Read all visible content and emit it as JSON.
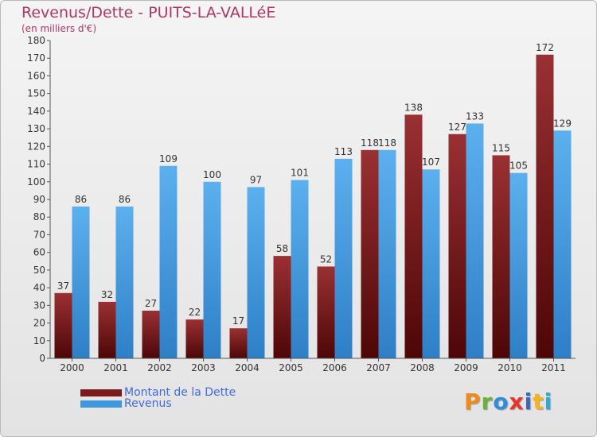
{
  "header": {
    "title": "Revenus/Dette - PUITS-LA-VALLéE",
    "unit": "(en milliers d'€)"
  },
  "legend": {
    "items": [
      {
        "label": "Montant de la Dette",
        "color": "#7a1a1d"
      },
      {
        "label": "Revenus",
        "color": "#3f97dd"
      }
    ]
  },
  "brand": {
    "name": "Proxiti",
    "colors": [
      "#f08a1f",
      "#6bb13a",
      "#2f8fd6",
      "#e8332a",
      "#3a67b8",
      "#f5b31e",
      "#2eaad8"
    ]
  },
  "chart_data": {
    "type": "bar",
    "title": "Revenus/Dette - PUITS-LA-VALLéE",
    "ylabel": "(en milliers d'€)",
    "ylim": [
      0,
      180
    ],
    "ytick_step": 10,
    "grid": false,
    "legend_position": "bottom-left",
    "categories": [
      "2000",
      "2001",
      "2002",
      "2003",
      "2004",
      "2005",
      "2006",
      "2007",
      "2008",
      "2009",
      "2010",
      "2011"
    ],
    "series": [
      {
        "name": "Montant de la Dette",
        "color": "#7a1a1d",
        "values": [
          37,
          32,
          27,
          22,
          17,
          58,
          52,
          118,
          138,
          127,
          115,
          172
        ]
      },
      {
        "name": "Revenus",
        "color": "#3f97dd",
        "values": [
          86,
          86,
          109,
          100,
          97,
          101,
          113,
          118,
          107,
          133,
          105,
          129
        ]
      }
    ]
  }
}
